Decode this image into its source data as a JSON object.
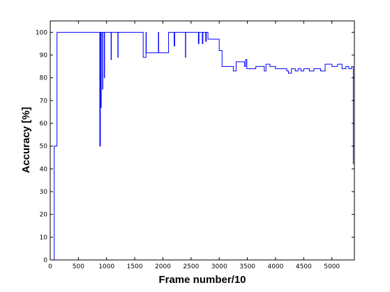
{
  "chart_data": {
    "type": "line",
    "title": "",
    "xlabel": "Frame number/10",
    "ylabel": "Accuracy [%]",
    "xlim": [
      0,
      5400
    ],
    "ylim": [
      0,
      105
    ],
    "xticks": [
      0,
      500,
      1000,
      1500,
      2000,
      2500,
      3000,
      3500,
      4000,
      4500,
      5000
    ],
    "yticks": [
      0,
      10,
      20,
      30,
      40,
      50,
      60,
      70,
      80,
      90,
      100
    ],
    "grid": false,
    "legend": "none",
    "series": [
      {
        "color": "#0000ff",
        "points": [
          [
            70,
            0
          ],
          [
            70,
            50
          ],
          [
            120,
            50
          ],
          [
            120,
            100
          ],
          [
            880,
            100
          ],
          [
            880,
            50
          ],
          [
            890,
            50
          ],
          [
            890,
            100
          ],
          [
            900,
            100
          ],
          [
            900,
            67
          ],
          [
            905,
            67
          ],
          [
            905,
            100
          ],
          [
            930,
            100
          ],
          [
            930,
            75
          ],
          [
            935,
            75
          ],
          [
            935,
            100
          ],
          [
            960,
            100
          ],
          [
            960,
            80
          ],
          [
            965,
            80
          ],
          [
            965,
            100
          ],
          [
            1080,
            100
          ],
          [
            1080,
            88
          ],
          [
            1085,
            88
          ],
          [
            1085,
            100
          ],
          [
            1200,
            100
          ],
          [
            1200,
            89
          ],
          [
            1205,
            89
          ],
          [
            1205,
            100
          ],
          [
            1650,
            100
          ],
          [
            1650,
            89
          ],
          [
            1700,
            89
          ],
          [
            1700,
            100
          ],
          [
            1705,
            100
          ],
          [
            1705,
            91
          ],
          [
            1920,
            91
          ],
          [
            1920,
            100
          ],
          [
            1925,
            100
          ],
          [
            1925,
            91
          ],
          [
            2100,
            91
          ],
          [
            2100,
            100
          ],
          [
            2200,
            100
          ],
          [
            2200,
            94
          ],
          [
            2210,
            94
          ],
          [
            2210,
            100
          ],
          [
            2400,
            100
          ],
          [
            2400,
            89
          ],
          [
            2405,
            89
          ],
          [
            2405,
            100
          ],
          [
            2630,
            100
          ],
          [
            2630,
            95
          ],
          [
            2640,
            95
          ],
          [
            2640,
            100
          ],
          [
            2700,
            100
          ],
          [
            2700,
            95
          ],
          [
            2710,
            95
          ],
          [
            2710,
            100
          ],
          [
            2760,
            100
          ],
          [
            2760,
            96
          ],
          [
            2770,
            96
          ],
          [
            2770,
            100
          ],
          [
            2800,
            100
          ],
          [
            2800,
            97
          ],
          [
            3000,
            97
          ],
          [
            3000,
            92
          ],
          [
            3050,
            92
          ],
          [
            3050,
            85
          ],
          [
            3250,
            85
          ],
          [
            3250,
            83
          ],
          [
            3300,
            83
          ],
          [
            3300,
            87
          ],
          [
            3450,
            87
          ],
          [
            3450,
            85
          ],
          [
            3470,
            85
          ],
          [
            3470,
            88
          ],
          [
            3490,
            88
          ],
          [
            3490,
            84
          ],
          [
            3650,
            84
          ],
          [
            3650,
            85
          ],
          [
            3800,
            85
          ],
          [
            3800,
            83
          ],
          [
            3830,
            83
          ],
          [
            3830,
            86
          ],
          [
            3900,
            86
          ],
          [
            3900,
            85
          ],
          [
            4000,
            85
          ],
          [
            4000,
            84
          ],
          [
            4200,
            84
          ],
          [
            4200,
            83
          ],
          [
            4230,
            83
          ],
          [
            4230,
            82
          ],
          [
            4280,
            82
          ],
          [
            4280,
            84
          ],
          [
            4350,
            84
          ],
          [
            4350,
            83
          ],
          [
            4400,
            83
          ],
          [
            4400,
            84
          ],
          [
            4450,
            84
          ],
          [
            4450,
            83
          ],
          [
            4500,
            83
          ],
          [
            4500,
            84
          ],
          [
            4600,
            84
          ],
          [
            4600,
            83
          ],
          [
            4680,
            83
          ],
          [
            4680,
            84
          ],
          [
            4800,
            84
          ],
          [
            4800,
            83
          ],
          [
            4880,
            83
          ],
          [
            4880,
            86
          ],
          [
            5000,
            86
          ],
          [
            5000,
            85
          ],
          [
            5100,
            85
          ],
          [
            5100,
            86
          ],
          [
            5180,
            86
          ],
          [
            5180,
            84
          ],
          [
            5250,
            84
          ],
          [
            5250,
            85
          ],
          [
            5300,
            85
          ],
          [
            5300,
            84
          ],
          [
            5350,
            84
          ],
          [
            5350,
            85
          ],
          [
            5380,
            85
          ],
          [
            5380,
            42
          ]
        ]
      }
    ]
  }
}
